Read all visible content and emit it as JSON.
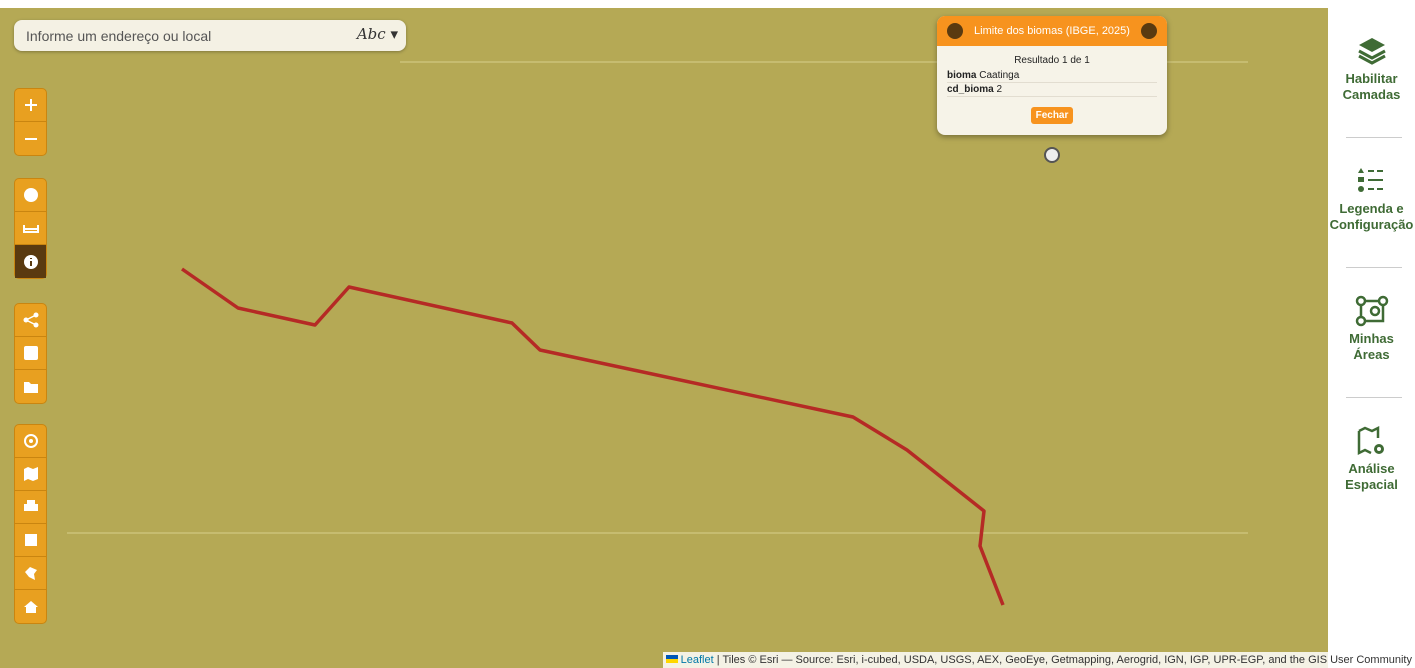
{
  "search": {
    "placeholder": "Informe um endereço ou local",
    "mode": "Abc"
  },
  "popup": {
    "title": "Limite dos biomas (IBGE, 2025)",
    "result": "Resultado 1 de 1",
    "fields": [
      [
        "bioma",
        "Caatinga"
      ],
      [
        "cd_bioma",
        "2"
      ]
    ],
    "button": "Fechar"
  },
  "sidebar": [
    {
      "lines": [
        "Habilitar",
        "Camadas"
      ]
    },
    {
      "lines": [
        "Legenda e",
        "Configuração"
      ]
    },
    {
      "lines": [
        "Minhas",
        "Áreas"
      ]
    },
    {
      "lines": [
        "Análise",
        "Espacial"
      ]
    }
  ],
  "attribution": {
    "link": "Leaflet",
    "text": " | Tiles © Esri — Source: Esri, i-cubed, USDA, USGS, AEX, GeoEye, Getmapping, Aerogrid, IGN, IGP, UPR-EGP, and the GIS User Community"
  }
}
